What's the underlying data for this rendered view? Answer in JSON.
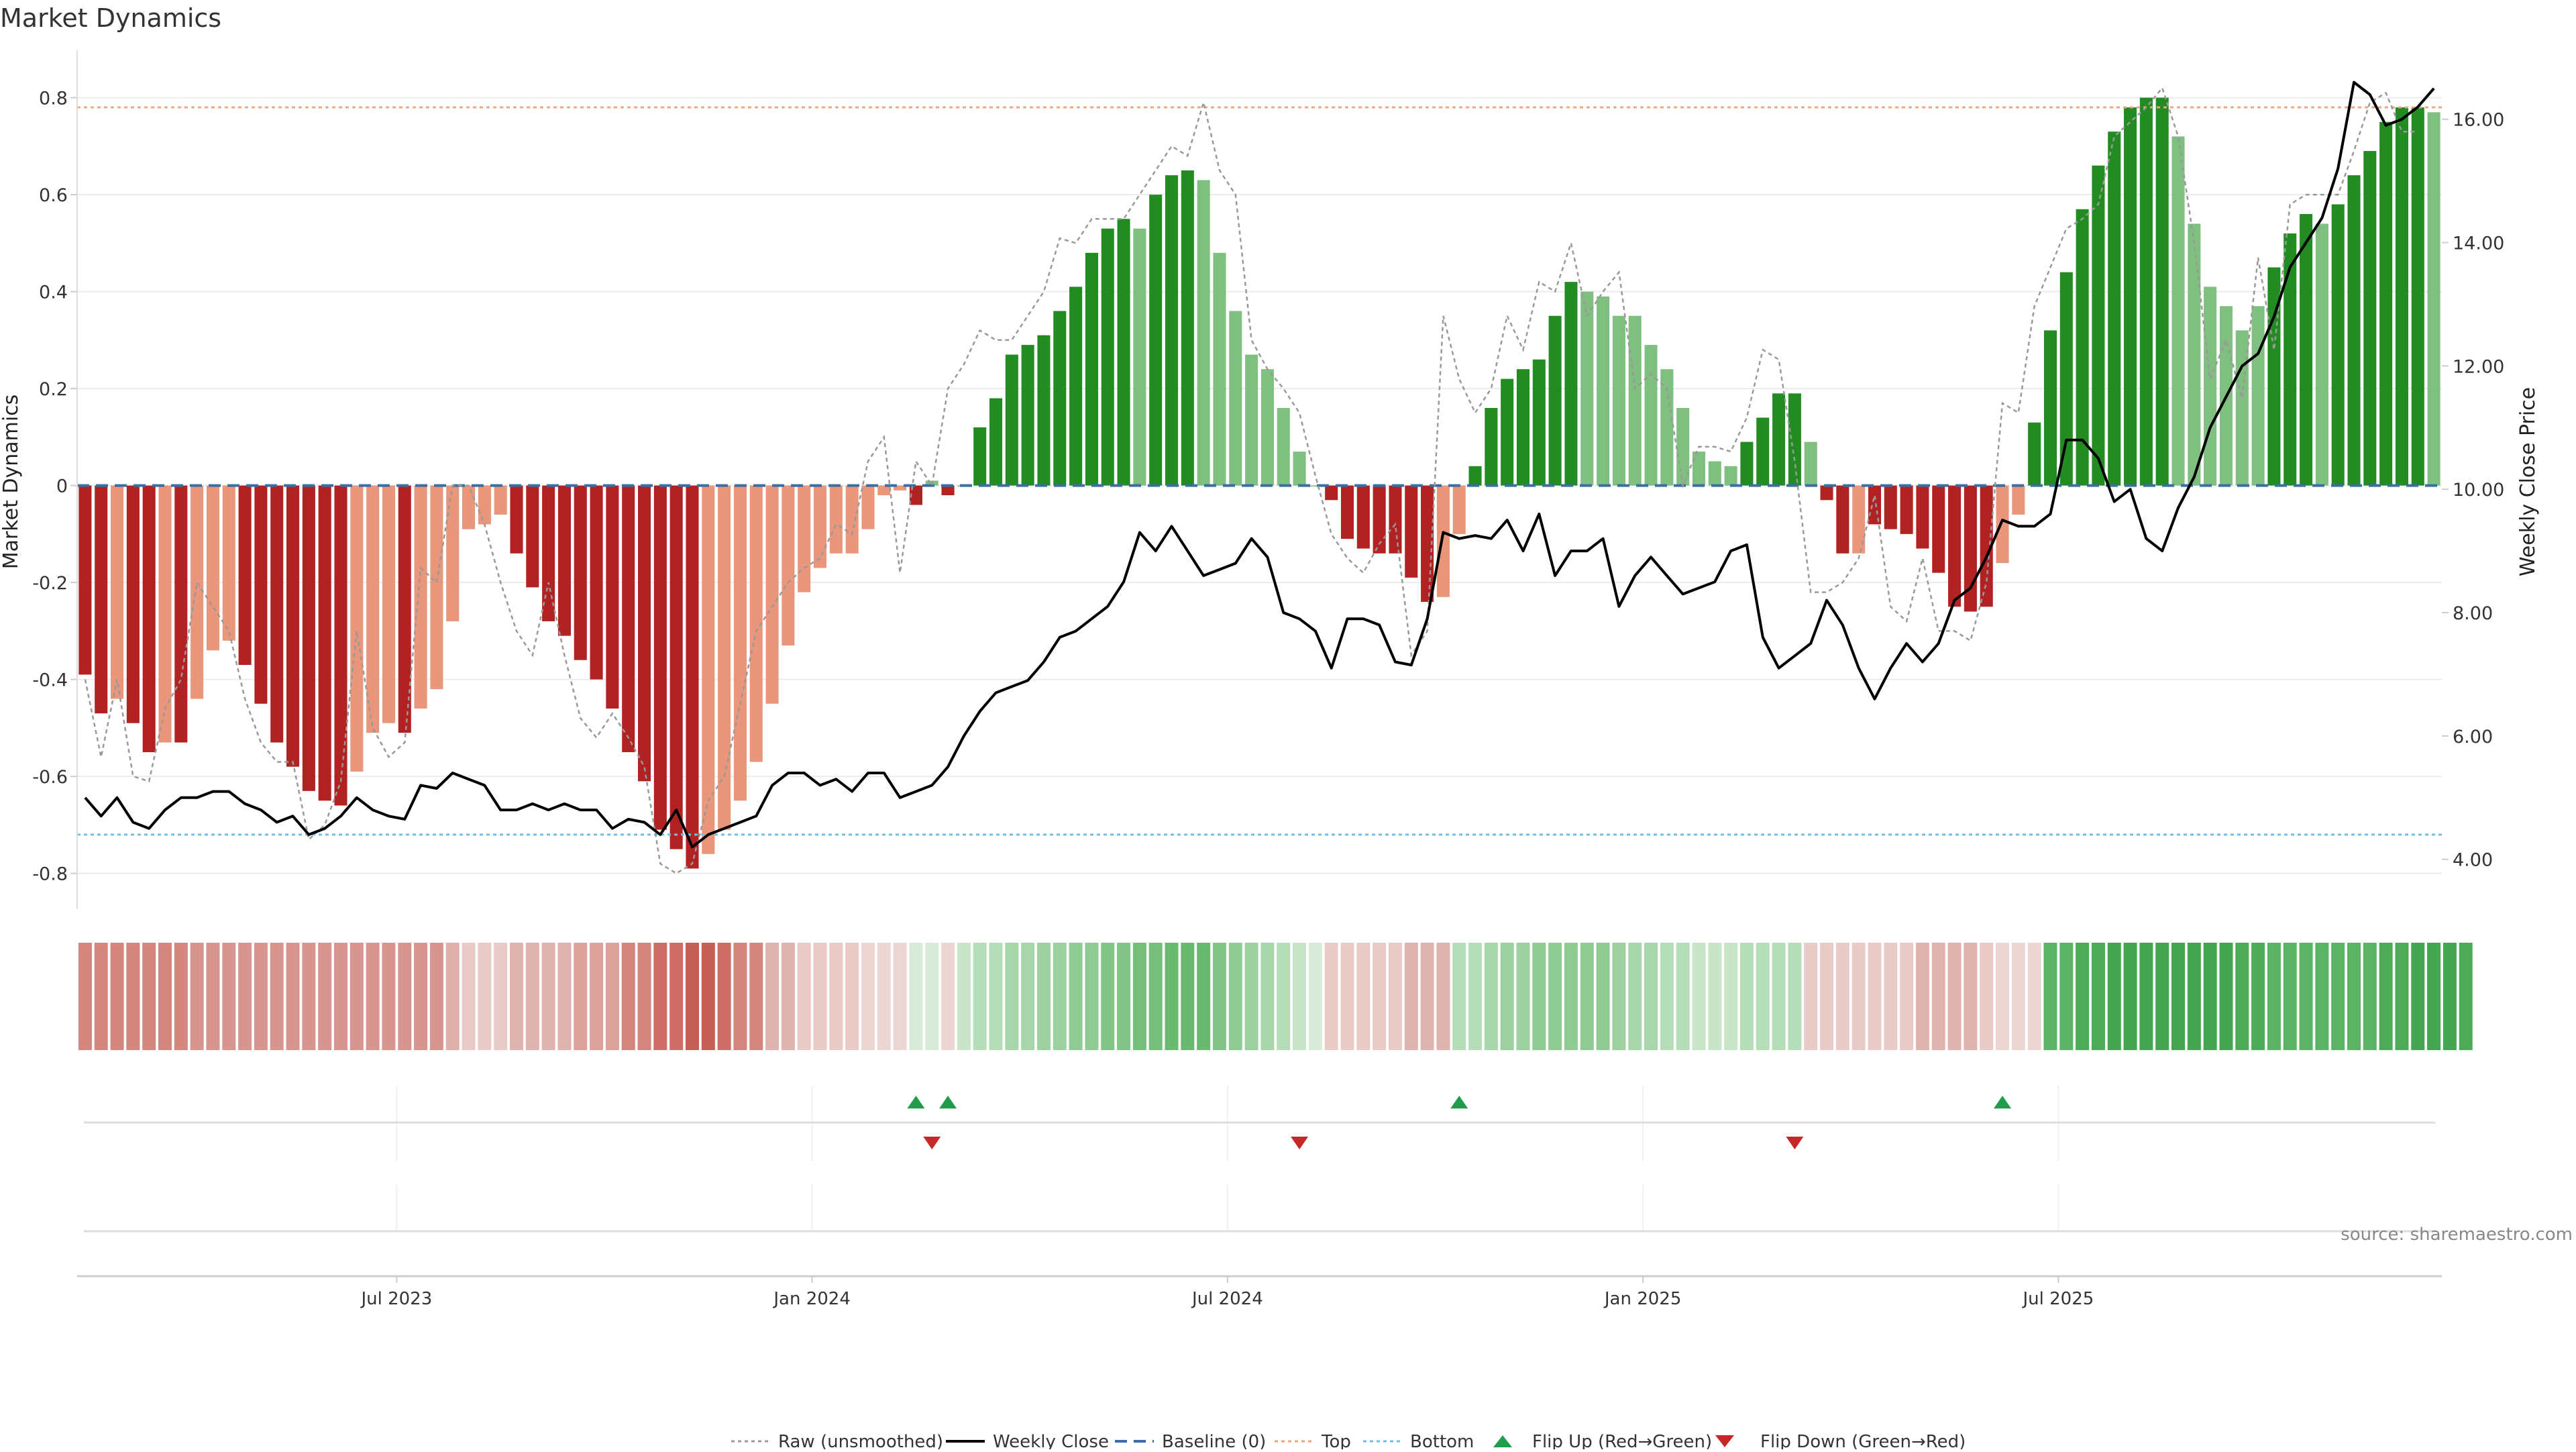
{
  "chart_data": {
    "type": "bar",
    "title": "Market Dynamics",
    "ylabel_left": "Market Dynamics",
    "ylabel_right": "Weekly Close Price",
    "ylim_left": [
      -0.86,
      0.87
    ],
    "ylim_right": [
      3.3,
      16.9
    ],
    "grid": true,
    "yticks_left": [
      "0.8",
      "0.6",
      "0.4",
      "0.2",
      "0",
      "-0.2",
      "-0.4",
      "-0.6",
      "-0.8"
    ],
    "yticks_right": [
      "16.00",
      "14.00",
      "12.00",
      "10.00",
      "8.00",
      "6.00",
      "4.00"
    ],
    "x_ticks": [
      "Jul 2023",
      "Jan 2024",
      "Jul 2024",
      "Jan 2025",
      "Jul 2025"
    ],
    "x_tick_weeks": [
      20,
      46,
      72,
      98,
      124
    ],
    "top_line": 0.78,
    "bottom_line": -0.72,
    "source": "source: sharemaestro.com",
    "legend": {
      "raw": "Raw (unsmoothed)",
      "close": "Weekly Close",
      "baseline": "Baseline (0)",
      "top": "Top",
      "bottom": "Bottom",
      "flip_up": "Flip Up (Red→Green)",
      "flip_down": "Flip Down (Green→Red)"
    },
    "colors": {
      "strong_green": "#228B22",
      "light_green": "#7FBF7F",
      "strong_red": "#B22222",
      "light_red": "#E9967A",
      "close_line": "#000000",
      "raw_line": "#999999",
      "baseline": "#3A6EA5",
      "top": "#E8A87C",
      "bottom": "#6EC1E4",
      "flip_up": "#1E9E4A",
      "flip_down": "#C62828"
    },
    "dynamics": [
      -0.39,
      -0.47,
      -0.44,
      -0.49,
      -0.55,
      -0.53,
      -0.53,
      -0.44,
      -0.34,
      -0.32,
      -0.37,
      -0.45,
      -0.53,
      -0.58,
      -0.63,
      -0.65,
      -0.66,
      -0.59,
      -0.51,
      -0.49,
      -0.51,
      -0.46,
      -0.42,
      -0.28,
      -0.09,
      -0.08,
      -0.06,
      -0.14,
      -0.21,
      -0.28,
      -0.31,
      -0.36,
      -0.4,
      -0.46,
      -0.55,
      -0.61,
      -0.71,
      -0.75,
      -0.79,
      -0.76,
      -0.71,
      -0.65,
      -0.57,
      -0.45,
      -0.33,
      -0.22,
      -0.17,
      -0.14,
      -0.14,
      -0.09,
      -0.02,
      -0.01,
      -0.04,
      0.01,
      -0.02,
      0.0,
      0.12,
      0.18,
      0.27,
      0.29,
      0.31,
      0.36,
      0.41,
      0.48,
      0.53,
      0.55,
      0.53,
      0.6,
      0.64,
      0.65,
      0.63,
      0.48,
      0.36,
      0.27,
      0.24,
      0.16,
      0.07,
      0.0,
      -0.03,
      -0.11,
      -0.13,
      -0.14,
      -0.14,
      -0.19,
      -0.24,
      -0.23,
      -0.1,
      0.04,
      0.16,
      0.22,
      0.24,
      0.26,
      0.35,
      0.42,
      0.4,
      0.39,
      0.35,
      0.35,
      0.29,
      0.24,
      0.16,
      0.07,
      0.05,
      0.04,
      0.09,
      0.14,
      0.19,
      0.19,
      0.09,
      -0.03,
      -0.14,
      -0.14,
      -0.08,
      -0.09,
      -0.1,
      -0.13,
      -0.18,
      -0.25,
      -0.26,
      -0.25,
      -0.16,
      -0.06,
      0.13,
      0.32,
      0.44,
      0.57,
      0.66,
      0.73,
      0.78,
      0.8,
      0.8,
      0.72,
      0.54,
      0.41,
      0.37,
      0.32,
      0.37,
      0.45,
      0.52,
      0.56,
      0.54,
      0.58,
      0.64,
      0.69,
      0.75,
      0.78,
      0.78,
      0.77
    ],
    "strength": [
      "s",
      "s",
      "l",
      "s",
      "s",
      "l",
      "s",
      "l",
      "l",
      "l",
      "s",
      "s",
      "s",
      "s",
      "s",
      "s",
      "s",
      "l",
      "l",
      "l",
      "s",
      "l",
      "l",
      "l",
      "l",
      "l",
      "l",
      "s",
      "s",
      "s",
      "s",
      "s",
      "s",
      "s",
      "s",
      "s",
      "s",
      "s",
      "s",
      "l",
      "l",
      "l",
      "l",
      "l",
      "l",
      "l",
      "l",
      "l",
      "l",
      "l",
      "l",
      "l",
      "s",
      "l",
      "s",
      "l",
      "s",
      "s",
      "s",
      "s",
      "s",
      "s",
      "s",
      "s",
      "s",
      "s",
      "l",
      "s",
      "s",
      "s",
      "l",
      "l",
      "l",
      "l",
      "l",
      "l",
      "l",
      "l",
      "s",
      "s",
      "s",
      "s",
      "s",
      "s",
      "s",
      "l",
      "l",
      "s",
      "s",
      "s",
      "s",
      "s",
      "s",
      "s",
      "l",
      "l",
      "l",
      "l",
      "l",
      "l",
      "l",
      "l",
      "l",
      "l",
      "s",
      "s",
      "s",
      "s",
      "l",
      "s",
      "s",
      "l",
      "s",
      "s",
      "s",
      "s",
      "s",
      "s",
      "s",
      "s",
      "l",
      "l",
      "s",
      "s",
      "s",
      "s",
      "s",
      "s",
      "s",
      "s",
      "s",
      "l",
      "l",
      "l",
      "l",
      "l",
      "l",
      "s",
      "s",
      "s",
      "l",
      "s",
      "s",
      "s",
      "s",
      "s",
      "s",
      "l"
    ],
    "raw": [
      -0.4,
      -0.56,
      -0.4,
      -0.6,
      -0.61,
      -0.46,
      -0.4,
      -0.2,
      -0.25,
      -0.3,
      -0.44,
      -0.53,
      -0.57,
      -0.57,
      -0.73,
      -0.7,
      -0.61,
      -0.3,
      -0.5,
      -0.56,
      -0.53,
      -0.17,
      -0.2,
      0.0,
      0.0,
      -0.08,
      -0.2,
      -0.3,
      -0.35,
      -0.2,
      -0.35,
      -0.48,
      -0.52,
      -0.47,
      -0.52,
      -0.58,
      -0.78,
      -0.8,
      -0.78,
      -0.65,
      -0.6,
      -0.45,
      -0.3,
      -0.25,
      -0.2,
      -0.17,
      -0.15,
      -0.08,
      -0.1,
      0.05,
      0.1,
      -0.18,
      0.05,
      0.0,
      0.2,
      0.25,
      0.32,
      0.3,
      0.3,
      0.35,
      0.4,
      0.51,
      0.5,
      0.55,
      0.55,
      0.55,
      0.6,
      0.65,
      0.7,
      0.68,
      0.79,
      0.65,
      0.6,
      0.3,
      0.24,
      0.2,
      0.15,
      0.02,
      -0.1,
      -0.15,
      -0.18,
      -0.12,
      -0.08,
      -0.35,
      -0.3,
      0.35,
      0.22,
      0.15,
      0.2,
      0.35,
      0.28,
      0.42,
      0.4,
      0.5,
      0.35,
      0.4,
      0.44,
      0.2,
      0.23,
      0.2,
      0.0,
      0.08,
      0.08,
      0.07,
      0.14,
      0.28,
      0.26,
      0.05,
      -0.22,
      -0.22,
      -0.2,
      -0.15,
      -0.02,
      -0.25,
      -0.28,
      -0.15,
      -0.3,
      -0.3,
      -0.32,
      -0.2,
      0.17,
      0.15,
      0.37,
      0.45,
      0.53,
      0.55,
      0.58,
      0.72,
      0.75,
      0.78,
      0.82,
      0.72,
      0.5,
      0.22,
      0.3,
      0.18,
      0.47,
      0.28,
      0.58,
      0.6,
      0.6,
      0.6,
      0.69,
      0.79,
      0.81,
      0.73,
      0.73
    ],
    "close": [
      5.0,
      4.7,
      5.0,
      4.6,
      4.5,
      4.8,
      5.0,
      5.0,
      5.1,
      5.1,
      4.9,
      4.8,
      4.6,
      4.7,
      4.4,
      4.5,
      4.7,
      5.0,
      4.8,
      4.7,
      4.65,
      5.2,
      5.15,
      5.4,
      5.3,
      5.2,
      4.8,
      4.8,
      4.9,
      4.8,
      4.9,
      4.8,
      4.8,
      4.5,
      4.65,
      4.6,
      4.4,
      4.8,
      4.2,
      4.4,
      4.5,
      4.6,
      4.7,
      5.2,
      5.4,
      5.4,
      5.2,
      5.3,
      5.1,
      5.4,
      5.4,
      5.0,
      5.1,
      5.2,
      5.5,
      6.0,
      6.4,
      6.7,
      6.8,
      6.9,
      7.2,
      7.6,
      7.7,
      7.9,
      8.1,
      8.5,
      9.3,
      9.0,
      9.4,
      9.0,
      8.6,
      8.7,
      8.8,
      9.2,
      8.9,
      8.0,
      7.9,
      7.7,
      7.1,
      7.9,
      7.9,
      7.8,
      7.2,
      7.15,
      7.9,
      9.3,
      9.2,
      9.25,
      9.2,
      9.5,
      9.0,
      9.6,
      8.6,
      9.0,
      9.0,
      9.2,
      8.1,
      8.6,
      8.9,
      8.6,
      8.3,
      8.4,
      8.5,
      9.0,
      9.1,
      7.6,
      7.1,
      7.3,
      7.5,
      8.2,
      7.8,
      7.1,
      6.6,
      7.1,
      7.5,
      7.2,
      7.5,
      8.2,
      8.4,
      8.9,
      9.5,
      9.4,
      9.4,
      9.6,
      10.8,
      10.8,
      10.5,
      9.8,
      10.0,
      9.2,
      9.0,
      9.7,
      10.2,
      11.0,
      11.5,
      12.0,
      12.2,
      12.8,
      13.6,
      14.0,
      14.4,
      15.2,
      16.6,
      16.4,
      15.9,
      16.0,
      16.2,
      16.5
    ],
    "strip_colors": [
      "#D4877F",
      "#D4877F",
      "#D4877F",
      "#D4877F",
      "#D4877F",
      "#D4877F",
      "#D4877F",
      "#D89590",
      "#D89590",
      "#D89590",
      "#D89590",
      "#D89590",
      "#D89590",
      "#D89590",
      "#D89590",
      "#D89590",
      "#D89590",
      "#D89590",
      "#D89590",
      "#D89590",
      "#D89590",
      "#D89590",
      "#D89590",
      "#E0B0AA",
      "#E8CBC7",
      "#E8CBC7",
      "#E8CBC7",
      "#E0B4AE",
      "#E0B4AE",
      "#E0B4AE",
      "#E0B4AE",
      "#DCA39D",
      "#DCA39D",
      "#DCA39D",
      "#D4857D",
      "#D4857D",
      "#CF6E66",
      "#CF6E66",
      "#C65F57",
      "#C65F57",
      "#CF6E66",
      "#D4857D",
      "#D4857D",
      "#E0B4AE",
      "#E0B4AE",
      "#E8CBC7",
      "#E8CBC7",
      "#E8CBC7",
      "#E8CBC7",
      "#ECD6D3",
      "#ECD6D3",
      "#ECD6D3",
      "#D8EBD8",
      "#D8EBD8",
      "#ECD6D3",
      "#C8E5C8",
      "#B5DDB8",
      "#B5DDB8",
      "#A8D6AB",
      "#A8D6AB",
      "#9DD1A0",
      "#9DD1A0",
      "#8FCB93",
      "#8FCB93",
      "#82C587",
      "#82C587",
      "#76BF7B",
      "#76BF7B",
      "#6AB970",
      "#6AB970",
      "#6AB970",
      "#82C587",
      "#8FCB93",
      "#9DD1A0",
      "#A8D6AB",
      "#B5DDB8",
      "#C8E5C8",
      "#D8EBD8",
      "#E8CBC7",
      "#E8CBC7",
      "#E8CBC7",
      "#E8CBC7",
      "#E8CBC7",
      "#E0B4AE",
      "#E0B4AE",
      "#E0B4AE",
      "#B5DDB8",
      "#B5DDB8",
      "#A8D6AB",
      "#9DD1A0",
      "#9DD1A0",
      "#8FCB93",
      "#8FCB93",
      "#8FCB93",
      "#8FCB93",
      "#8FCB93",
      "#9DD1A0",
      "#A8D6AB",
      "#A8D6AB",
      "#B5DDB8",
      "#B5DDB8",
      "#C8E5C8",
      "#C8E5C8",
      "#C8E5C8",
      "#B5DDB8",
      "#B5DDB8",
      "#B5DDB8",
      "#B5DDB8",
      "#E8CBC7",
      "#E8CBC7",
      "#E8CBC7",
      "#E8CBC7",
      "#E8CBC7",
      "#E8CBC7",
      "#E8CBC7",
      "#E0B4AE",
      "#E0B4AE",
      "#E0B4AE",
      "#E0B4AE",
      "#E8CBC7",
      "#ECD6D3",
      "#ECD6D3",
      "#ECD6D3",
      "#5DB365",
      "#5DB365",
      "#4DAA57",
      "#4DAA57",
      "#45A550",
      "#45A550",
      "#45A550",
      "#45A550",
      "#45A550",
      "#45A550",
      "#45A550",
      "#45A550",
      "#4DAA57",
      "#4DAA57",
      "#5DB365",
      "#5DB365",
      "#5DB365",
      "#5DB365",
      "#5DB365",
      "#5DB365",
      "#5DB365",
      "#4DAA57",
      "#4DAA57",
      "#45A550",
      "#45A550",
      "#45A550",
      "#4DAA57"
    ],
    "flips_up": [
      52,
      54,
      86,
      120
    ],
    "flips_down": [
      53,
      76,
      107
    ]
  }
}
